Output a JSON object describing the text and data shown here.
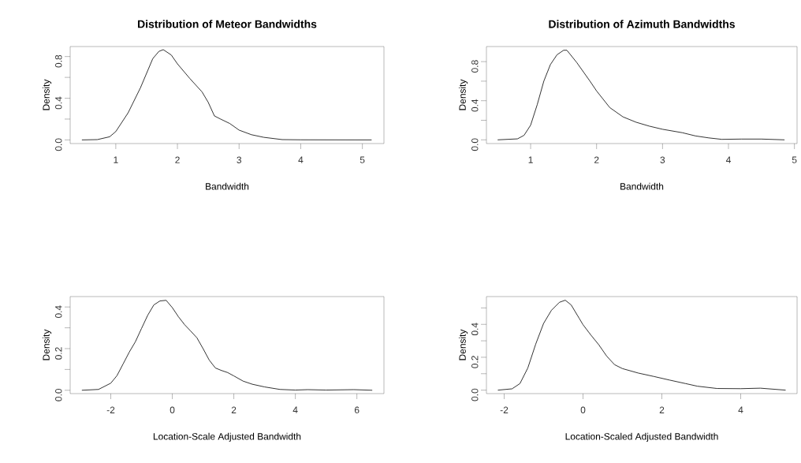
{
  "chart_data": [
    {
      "type": "line",
      "title": "Distribution of Meteor Bandwidths",
      "xlabel": "Bandwidth",
      "ylabel": "Density",
      "color": "#000000",
      "xlim": [
        0.26,
        5.35
      ],
      "ylim": [
        -0.035,
        0.896
      ],
      "xticks": [
        1,
        2,
        3,
        4,
        5
      ],
      "yticks": [
        {
          "value": 0,
          "label": "0.0"
        },
        {
          "value": 0.2,
          "label": null
        },
        0.4,
        {
          "value": 0.6,
          "label": null
        },
        0.8
      ],
      "x": [
        0.45,
        0.7,
        0.9,
        1.0,
        1.2,
        1.4,
        1.6,
        1.7,
        1.77,
        1.9,
        2.0,
        2.2,
        2.4,
        2.5,
        2.6,
        2.7,
        2.85,
        3.0,
        3.2,
        3.4,
        3.7,
        4.0,
        5.15
      ],
      "values": [
        0,
        0.003,
        0.03,
        0.08,
        0.26,
        0.5,
        0.78,
        0.85,
        0.866,
        0.815,
        0.73,
        0.59,
        0.46,
        0.36,
        0.23,
        0.2,
        0.157,
        0.094,
        0.05,
        0.025,
        0.003,
        0.001,
        0
      ]
    },
    {
      "type": "line",
      "title": "Distribution of Azimuth Bandwidths",
      "xlabel": "Bandwidth",
      "ylabel": "Density",
      "color": "#000000",
      "xlim": [
        0.33,
        5.04
      ],
      "ylim": [
        -0.038,
        0.954
      ],
      "xticks": [
        1,
        2,
        3,
        4,
        5
      ],
      "yticks": [
        {
          "value": 0,
          "label": "0.0"
        },
        {
          "value": 0.2,
          "label": null
        },
        0.4,
        {
          "value": 0.6,
          "label": null
        },
        0.8
      ],
      "x": [
        0.5,
        0.8,
        0.9,
        1.0,
        1.1,
        1.2,
        1.3,
        1.4,
        1.5,
        1.55,
        1.7,
        1.9,
        2.0,
        2.2,
        2.4,
        2.6,
        2.8,
        3.0,
        3.3,
        3.5,
        3.7,
        3.9,
        4.2,
        4.5,
        4.85
      ],
      "values": [
        0,
        0.01,
        0.046,
        0.15,
        0.36,
        0.6,
        0.77,
        0.87,
        0.916,
        0.916,
        0.79,
        0.6,
        0.5,
        0.33,
        0.235,
        0.18,
        0.14,
        0.108,
        0.073,
        0.04,
        0.02,
        0.005,
        0.008,
        0.008,
        0
      ]
    },
    {
      "type": "line",
      "xlabel": "Location-Scale Adjusted Bandwidth",
      "ylabel": "Density",
      "color": "#000000",
      "xlim": [
        -3.32,
        6.88
      ],
      "ylim": [
        -0.016,
        0.45
      ],
      "xticks": [
        -2,
        0,
        2,
        4,
        6
      ],
      "yticks": [
        {
          "value": 0,
          "label": "0.0"
        },
        {
          "value": 0.1,
          "label": null
        },
        0.2,
        {
          "value": 0.3,
          "label": null
        },
        0.4
      ],
      "x": [
        -2.94,
        -2.4,
        -2.0,
        -1.8,
        -1.6,
        -1.4,
        -1.2,
        -1.0,
        -0.8,
        -0.6,
        -0.4,
        -0.2,
        0,
        0.2,
        0.4,
        0.6,
        0.8,
        1.0,
        1.2,
        1.4,
        1.6,
        1.8,
        2.0,
        2.3,
        2.6,
        3.0,
        3.5,
        4.0,
        4.4,
        5.0,
        5.9,
        6.5
      ],
      "values": [
        0,
        0.004,
        0.034,
        0.07,
        0.126,
        0.183,
        0.233,
        0.297,
        0.36,
        0.41,
        0.429,
        0.432,
        0.397,
        0.353,
        0.315,
        0.284,
        0.252,
        0.2,
        0.145,
        0.107,
        0.095,
        0.085,
        0.069,
        0.044,
        0.029,
        0.016,
        0.004,
        0.001,
        0.003,
        0.001,
        0.003,
        0
      ]
    },
    {
      "type": "line",
      "xlabel": "Location-Scaled Adjusted Bandwidth",
      "ylabel": "Density",
      "color": "#000000",
      "xlim": [
        -2.45,
        5.43
      ],
      "ylim": [
        -0.021,
        0.569
      ],
      "xticks": [
        -2,
        0,
        2,
        4
      ],
      "yticks": [
        {
          "value": 0,
          "label": "0.0"
        },
        {
          "value": 0.1,
          "label": null
        },
        0.2,
        {
          "value": 0.3,
          "label": null
        },
        0.4,
        {
          "value": 0.5,
          "label": null
        }
      ],
      "x": [
        -2.16,
        -1.8,
        -1.6,
        -1.4,
        -1.2,
        -1.0,
        -0.8,
        -0.6,
        -0.45,
        -0.3,
        -0.1,
        0,
        0.2,
        0.4,
        0.6,
        0.8,
        1.0,
        1.4,
        1.8,
        2.2,
        2.6,
        2.9,
        3.4,
        4.0,
        4.5,
        5.14
      ],
      "values": [
        0,
        0.008,
        0.04,
        0.135,
        0.28,
        0.406,
        0.486,
        0.534,
        0.547,
        0.518,
        0.438,
        0.398,
        0.335,
        0.276,
        0.207,
        0.155,
        0.131,
        0.104,
        0.083,
        0.061,
        0.04,
        0.024,
        0.01,
        0.009,
        0.012,
        0
      ]
    }
  ]
}
